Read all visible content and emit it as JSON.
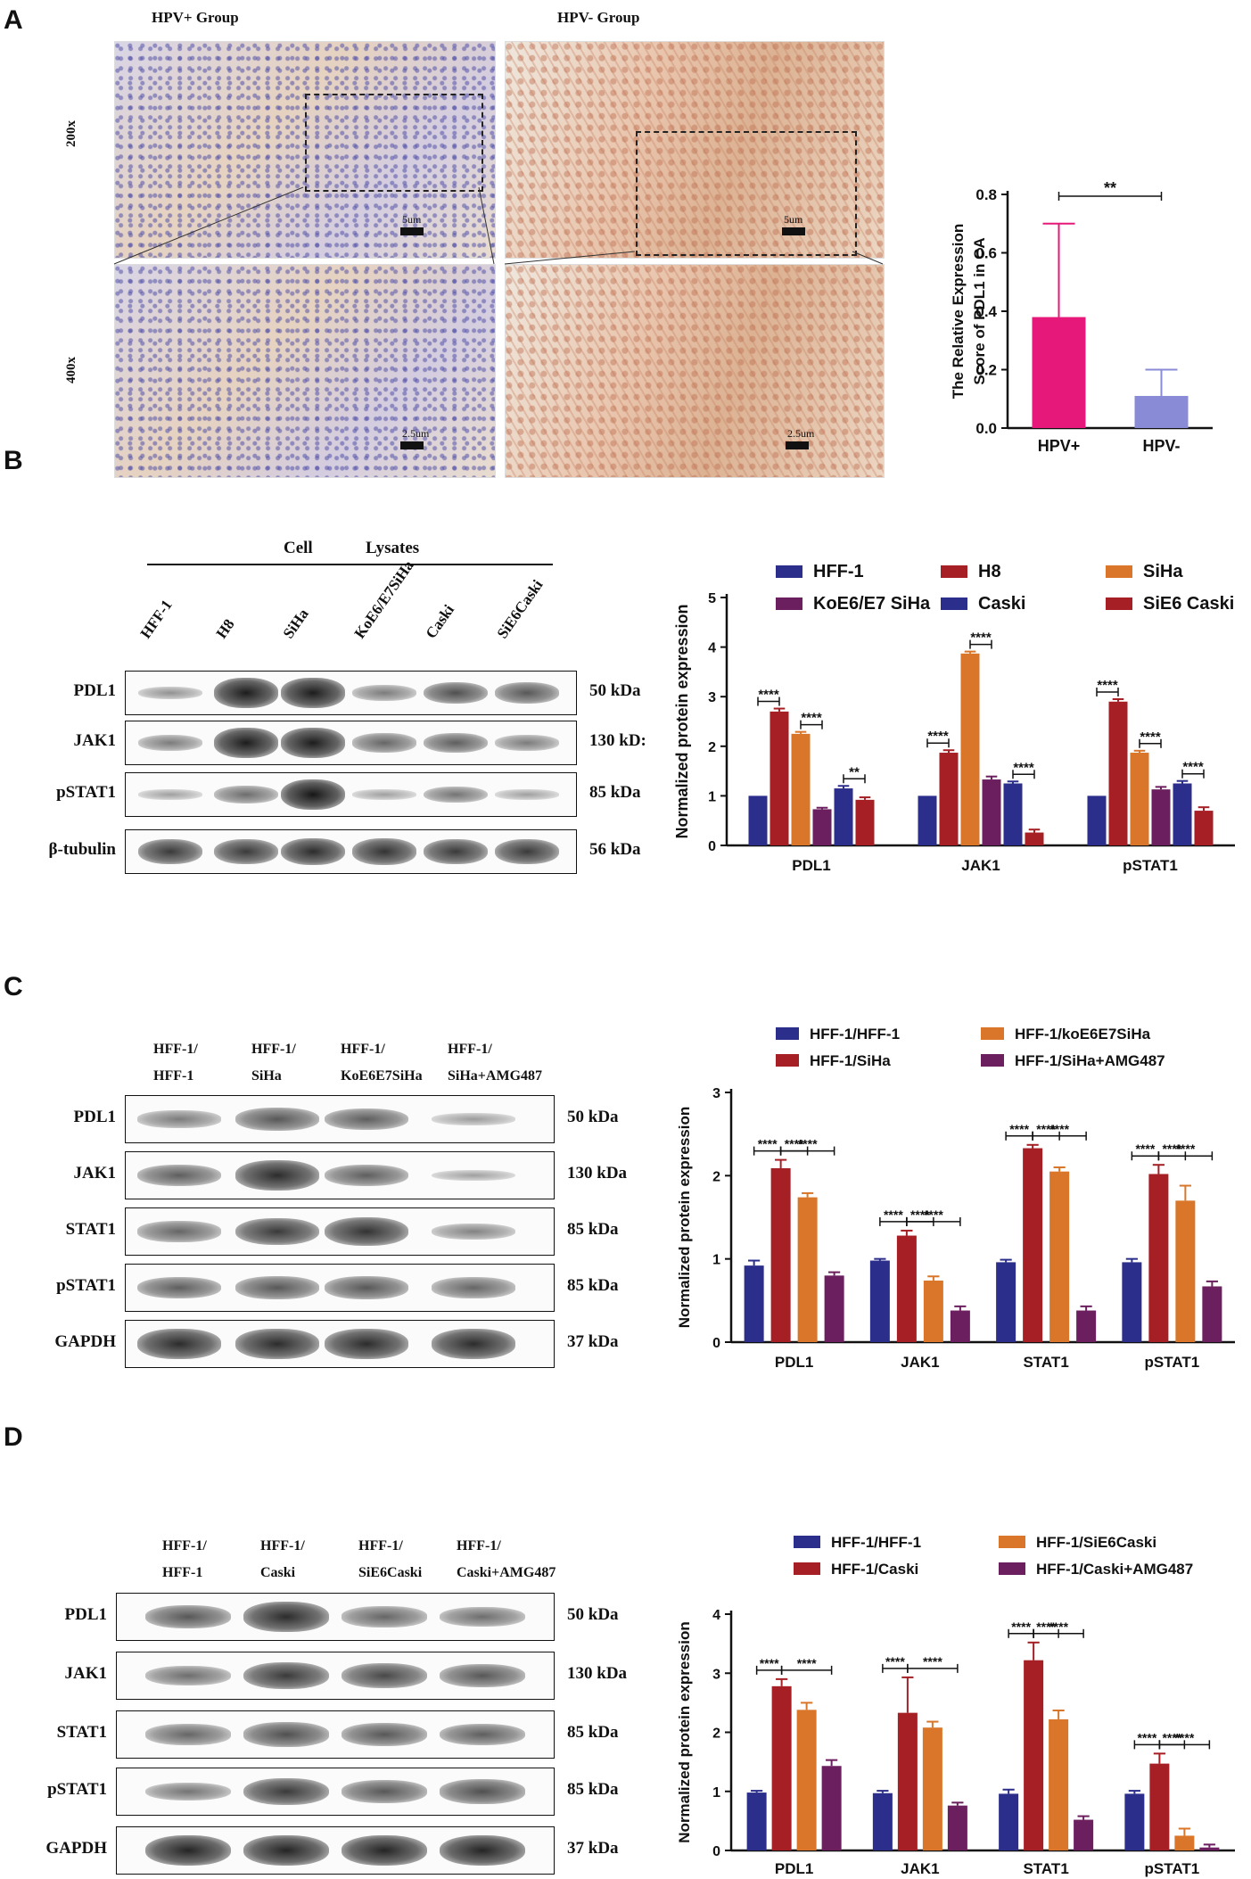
{
  "panels": {
    "A": {
      "letter": "A",
      "group_pos": "HPV+  Group",
      "group_neg": "HPV- Group",
      "mag_top": "200x",
      "mag_bottom": "400x",
      "scale_top": "5um",
      "scale_bottom": "2.5um"
    },
    "B": {
      "letter": "B",
      "header_cell": "Cell",
      "header_lysates": "Lysates",
      "lanes": [
        "HFF-1",
        "H8",
        "SiHa",
        "KoE6/E7SiHa",
        "Caski",
        "SiE6Caski"
      ],
      "rows": [
        {
          "label": "PDL1",
          "kda": "50 kDa"
        },
        {
          "label": "JAK1",
          "kda": "130 kD:"
        },
        {
          "label": "pSTAT1",
          "kda": "85 kDa"
        },
        {
          "label": "β-tubulin",
          "kda": "56 kDa"
        }
      ]
    },
    "C": {
      "letter": "C",
      "lanes": [
        [
          "HFF-1/",
          "HFF-1"
        ],
        [
          "HFF-1/",
          "SiHa"
        ],
        [
          "HFF-1/",
          "KoE6E7SiHa"
        ],
        [
          "HFF-1/",
          "SiHa+AMG487"
        ]
      ],
      "rows": [
        {
          "label": "PDL1",
          "kda": "50 kDa"
        },
        {
          "label": "JAK1",
          "kda": "130 kDa"
        },
        {
          "label": "STAT1",
          "kda": "85 kDa"
        },
        {
          "label": "pSTAT1",
          "kda": "85 kDa"
        },
        {
          "label": "GAPDH",
          "kda": "37 kDa"
        }
      ]
    },
    "D": {
      "letter": "D",
      "lanes": [
        [
          "HFF-1/",
          "HFF-1"
        ],
        [
          "HFF-1/",
          "Caski"
        ],
        [
          "HFF-1/",
          "SiE6Caski"
        ],
        [
          "HFF-1/",
          "Caski+AMG487"
        ]
      ],
      "rows": [
        {
          "label": "PDL1",
          "kda": "50 kDa"
        },
        {
          "label": "JAK1",
          "kda": "130 kDa"
        },
        {
          "label": "STAT1",
          "kda": "85 kDa"
        },
        {
          "label": "pSTAT1",
          "kda": "85 kDa"
        },
        {
          "label": "GAPDH",
          "kda": "37 kDa"
        }
      ]
    }
  },
  "chart_data": [
    {
      "id": "A",
      "type": "bar",
      "ylabel": "The Relative Expression Score of PDL1 in CA",
      "ylim": [
        0,
        0.8
      ],
      "yticks": [
        "0.0",
        "0.2",
        "0.4",
        "0.6",
        "0.8"
      ],
      "categories": [
        "HPV+",
        "HPV-"
      ],
      "values": [
        0.38,
        0.11
      ],
      "errors": [
        0.32,
        0.09
      ],
      "colors": [
        "#e6197b",
        "#8a8bd6"
      ],
      "significance": [
        {
          "between": [
            0,
            1
          ],
          "label": "**"
        }
      ]
    },
    {
      "id": "B",
      "type": "bar",
      "ylabel": "Normalized protein expression",
      "ylim": [
        0,
        5
      ],
      "yticks": [
        "0",
        "1",
        "2",
        "3",
        "4",
        "5"
      ],
      "categories": [
        "PDL1",
        "JAK1",
        "pSTAT1"
      ],
      "legend_columns": 3,
      "series": [
        {
          "name": "HFF-1",
          "color": "#2b2e8a",
          "values": [
            1.0,
            1.0,
            1.0
          ],
          "errors": [
            0,
            0,
            0
          ]
        },
        {
          "name": "H8",
          "color": "#a51f24",
          "values": [
            2.7,
            1.87,
            2.9
          ],
          "errors": [
            0.06,
            0.05,
            0.05
          ]
        },
        {
          "name": "SiHa",
          "color": "#d9762a",
          "values": [
            2.25,
            3.87,
            1.87
          ],
          "errors": [
            0.04,
            0.04,
            0.04
          ]
        },
        {
          "name": "KoE6/E7 SiHa",
          "color": "#6b1f5e",
          "values": [
            0.73,
            1.33,
            1.13
          ],
          "errors": [
            0.03,
            0.06,
            0.05
          ]
        },
        {
          "name": "Caski",
          "color": "#2b2e8a",
          "values": [
            1.15,
            1.25,
            1.25
          ],
          "errors": [
            0.05,
            0.04,
            0.05
          ]
        },
        {
          "name": "SiE6 Caski",
          "color": "#a51f24",
          "values": [
            0.92,
            0.26,
            0.7
          ],
          "errors": [
            0.05,
            0.06,
            0.07
          ]
        }
      ],
      "significance": [
        {
          "group": 0,
          "between": [
            0,
            1
          ],
          "label": "****"
        },
        {
          "group": 0,
          "between": [
            2,
            3
          ],
          "label": "****"
        },
        {
          "group": 0,
          "between": [
            4,
            5
          ],
          "label": "**"
        },
        {
          "group": 1,
          "between": [
            0,
            1
          ],
          "label": "****"
        },
        {
          "group": 1,
          "between": [
            2,
            3
          ],
          "label": "****"
        },
        {
          "group": 1,
          "between": [
            4,
            5
          ],
          "label": "****"
        },
        {
          "group": 2,
          "between": [
            0,
            1
          ],
          "label": "****"
        },
        {
          "group": 2,
          "between": [
            2,
            3
          ],
          "label": "****"
        },
        {
          "group": 2,
          "between": [
            4,
            5
          ],
          "label": "****"
        }
      ]
    },
    {
      "id": "C",
      "type": "bar",
      "ylabel": "Normalized protein expression",
      "ylim": [
        0,
        3
      ],
      "yticks": [
        "0",
        "1",
        "2",
        "3"
      ],
      "categories": [
        "PDL1",
        "JAK1",
        "STAT1",
        "pSTAT1"
      ],
      "legend_columns": 2,
      "legend_order": [
        0,
        2,
        1,
        3
      ],
      "series": [
        {
          "name": "HFF-1/HFF-1",
          "color": "#2b2e8a",
          "values": [
            0.92,
            0.98,
            0.96,
            0.96
          ],
          "errors": [
            0.06,
            0.02,
            0.03,
            0.04
          ]
        },
        {
          "name": "HFF-1/SiHa",
          "color": "#a51f24",
          "values": [
            2.09,
            1.28,
            2.33,
            2.02
          ],
          "errors": [
            0.1,
            0.06,
            0.04,
            0.11
          ]
        },
        {
          "name": "HFF-1/koE6E7SiHa",
          "color": "#d9762a",
          "values": [
            1.74,
            0.74,
            2.05,
            1.7
          ],
          "errors": [
            0.05,
            0.05,
            0.05,
            0.18
          ]
        },
        {
          "name": "HFF-1/SiHa+AMG487",
          "color": "#6b1f5e",
          "values": [
            0.8,
            0.38,
            0.38,
            0.67
          ],
          "errors": [
            0.04,
            0.05,
            0.05,
            0.06
          ]
        }
      ],
      "significance": [
        {
          "group": 0,
          "between": [
            0,
            1
          ],
          "label": "****"
        },
        {
          "group": 0,
          "between": [
            1,
            2
          ],
          "label": "****"
        },
        {
          "group": 0,
          "between": [
            1,
            3
          ],
          "label": "****"
        },
        {
          "group": 1,
          "between": [
            0,
            1
          ],
          "label": "****"
        },
        {
          "group": 1,
          "between": [
            1,
            2
          ],
          "label": "****"
        },
        {
          "group": 1,
          "between": [
            1,
            3
          ],
          "label": "****"
        },
        {
          "group": 2,
          "between": [
            0,
            1
          ],
          "label": "****"
        },
        {
          "group": 2,
          "between": [
            1,
            2
          ],
          "label": "****"
        },
        {
          "group": 2,
          "between": [
            1,
            3
          ],
          "label": "****"
        },
        {
          "group": 3,
          "between": [
            0,
            1
          ],
          "label": "****"
        },
        {
          "group": 3,
          "between": [
            1,
            2
          ],
          "label": "****"
        },
        {
          "group": 3,
          "between": [
            1,
            3
          ],
          "label": "****"
        }
      ]
    },
    {
      "id": "D",
      "type": "bar",
      "ylabel": "Normalized protein expression",
      "ylim": [
        0,
        4
      ],
      "yticks": [
        "0",
        "1",
        "2",
        "3",
        "4"
      ],
      "categories": [
        "PDL1",
        "JAK1",
        "STAT1",
        "pSTAT1"
      ],
      "legend_columns": 2,
      "legend_order": [
        0,
        2,
        1,
        3
      ],
      "series": [
        {
          "name": "HFF-1/HFF-1",
          "color": "#2b2e8a",
          "values": [
            0.98,
            0.97,
            0.96,
            0.96
          ],
          "errors": [
            0.03,
            0.04,
            0.07,
            0.05
          ]
        },
        {
          "name": "HFF-1/Caski",
          "color": "#a51f24",
          "values": [
            2.78,
            2.33,
            3.22,
            1.47
          ],
          "errors": [
            0.12,
            0.6,
            0.3,
            0.17
          ]
        },
        {
          "name": "HFF-1/SiE6Caski",
          "color": "#d9762a",
          "values": [
            2.38,
            2.08,
            2.22,
            0.25
          ],
          "errors": [
            0.12,
            0.1,
            0.15,
            0.12
          ]
        },
        {
          "name": "HFF-1/Caski+AMG487",
          "color": "#6b1f5e",
          "values": [
            1.43,
            0.76,
            0.52,
            0.05
          ],
          "errors": [
            0.1,
            0.05,
            0.06,
            0.05
          ]
        }
      ],
      "significance": [
        {
          "group": 0,
          "between": [
            0,
            1
          ],
          "label": "****"
        },
        {
          "group": 0,
          "between": [
            1,
            3
          ],
          "label": "****"
        },
        {
          "group": 1,
          "between": [
            0,
            1
          ],
          "label": "****"
        },
        {
          "group": 1,
          "between": [
            1,
            3
          ],
          "label": "****"
        },
        {
          "group": 2,
          "between": [
            0,
            1
          ],
          "label": "****"
        },
        {
          "group": 2,
          "between": [
            1,
            2
          ],
          "label": "****"
        },
        {
          "group": 2,
          "between": [
            1,
            3
          ],
          "label": "****"
        },
        {
          "group": 3,
          "between": [
            0,
            1
          ],
          "label": "****"
        },
        {
          "group": 3,
          "between": [
            1,
            2
          ],
          "label": "****"
        },
        {
          "group": 3,
          "between": [
            1,
            3
          ],
          "label": "****"
        }
      ]
    }
  ]
}
